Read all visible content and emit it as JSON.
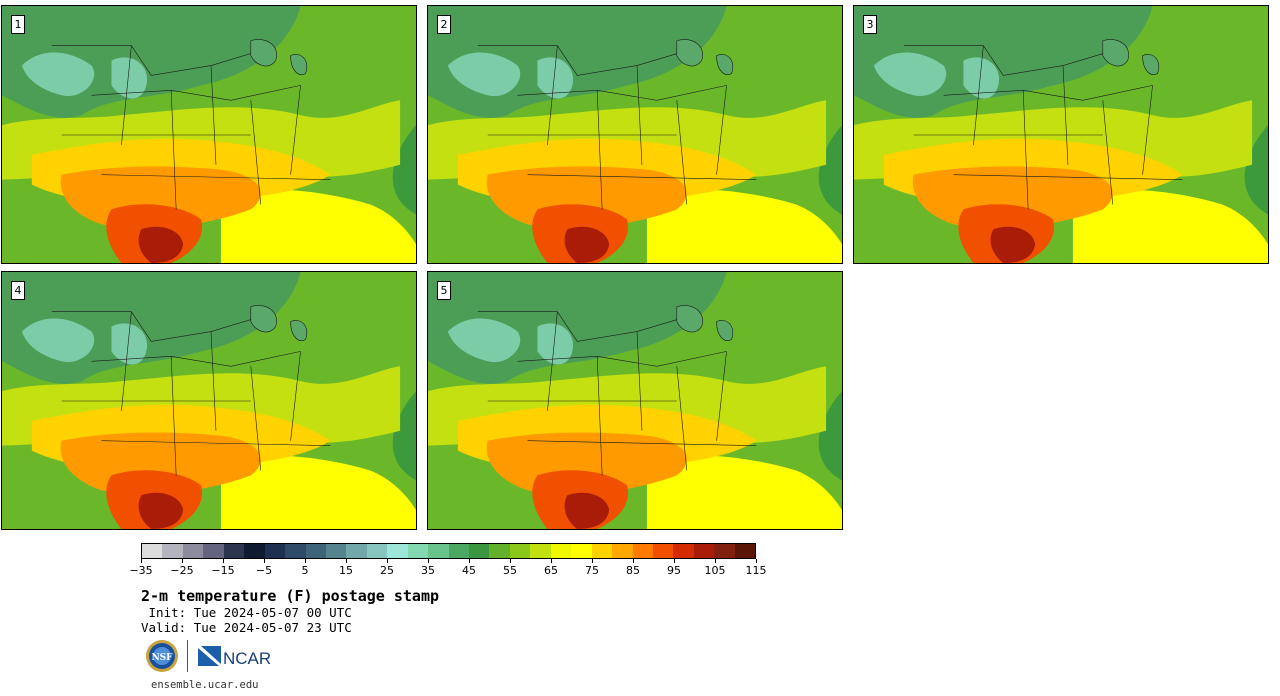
{
  "panels": [
    {
      "label": "1"
    },
    {
      "label": "2"
    },
    {
      "label": "3"
    },
    {
      "label": "4"
    },
    {
      "label": "5"
    }
  ],
  "colorbar": {
    "colors": [
      "#dcdcdc",
      "#b4b4be",
      "#8c8c9e",
      "#64647e",
      "#2c3450",
      "#0e1a30",
      "#1e3050",
      "#2e4a66",
      "#3e6478",
      "#56848e",
      "#72a8aa",
      "#88c4c0",
      "#9ee6d8",
      "#84d8b0",
      "#68c48a",
      "#4aa860",
      "#3a9640",
      "#64b02a",
      "#8cc81a",
      "#c0e010",
      "#f0f800",
      "#ffff00",
      "#ffd200",
      "#ffa800",
      "#ff7c00",
      "#f05000",
      "#d42c00",
      "#a81c08",
      "#822010",
      "#5a1408"
    ],
    "tick_labels": [
      "−35",
      "−25",
      "−15",
      "−5",
      "5",
      "15",
      "25",
      "35",
      "45",
      "55",
      "65",
      "75",
      "85",
      "95",
      "105",
      "115"
    ]
  },
  "title": "2-m temperature (F) postage stamp",
  "init_line": " Init: Tue 2024-05-07 00 UTC",
  "valid_line": "Valid: Tue 2024-05-07 23 UTC",
  "logos": {
    "nsf": "NSF",
    "ncar": "NCAR"
  },
  "url": "ensemble.ucar.edu"
}
